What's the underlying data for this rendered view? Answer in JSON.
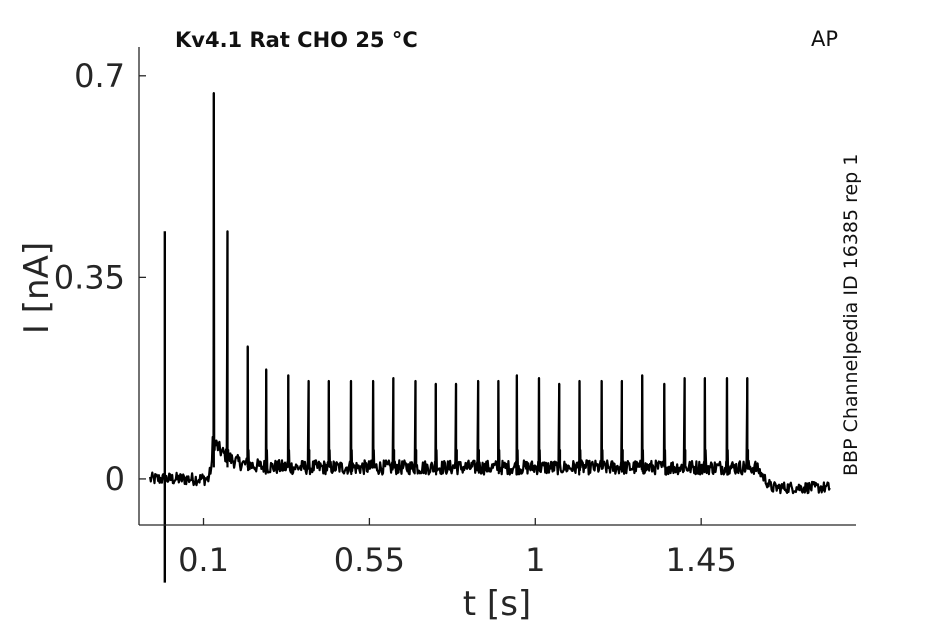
{
  "chart_data": {
    "type": "line",
    "title": "Kv4.1  Rat  CHO  25 °C",
    "corner_label": "AP",
    "side_label": "BBP Channelpedia ID 16385 rep 1",
    "xlabel": "t [s]",
    "ylabel": "I [nA]",
    "xlim": [
      -0.075,
      1.87
    ],
    "ylim": [
      -0.08,
      0.75
    ],
    "x_ticks": [
      0.1,
      0.55,
      1,
      1.45
    ],
    "x_tick_labels": [
      "0.1",
      "0.55",
      "1",
      "1.45"
    ],
    "y_ticks": [
      0,
      0.35,
      0.7
    ],
    "y_tick_labels": [
      "0",
      "0.35",
      "0.7"
    ],
    "grid": false,
    "legend": "none",
    "series": [
      {
        "color": "#000000",
        "baseline_start": 0,
        "baseline_end": -0.015,
        "stim_artifact": {
          "x": -0.005,
          "max": 0.43,
          "min": -0.18
        },
        "stim_on": 0.125,
        "stim_off": 1.6,
        "plateau": 0.02,
        "spikes": [
          {
            "t": 0.128,
            "peak": 0.67
          },
          {
            "t": 0.165,
            "peak": 0.43
          },
          {
            "t": 0.22,
            "peak": 0.23
          },
          {
            "t": 0.27,
            "peak": 0.19
          },
          {
            "t": 0.33,
            "peak": 0.18
          },
          {
            "t": 0.385,
            "peak": 0.17
          },
          {
            "t": 0.44,
            "peak": 0.17
          },
          {
            "t": 0.5,
            "peak": 0.17
          },
          {
            "t": 0.56,
            "peak": 0.17
          },
          {
            "t": 0.615,
            "peak": 0.175
          },
          {
            "t": 0.675,
            "peak": 0.17
          },
          {
            "t": 0.73,
            "peak": 0.165
          },
          {
            "t": 0.785,
            "peak": 0.165
          },
          {
            "t": 0.845,
            "peak": 0.17
          },
          {
            "t": 0.9,
            "peak": 0.17
          },
          {
            "t": 0.95,
            "peak": 0.18
          },
          {
            "t": 1.01,
            "peak": 0.175
          },
          {
            "t": 1.065,
            "peak": 0.165
          },
          {
            "t": 1.12,
            "peak": 0.17
          },
          {
            "t": 1.18,
            "peak": 0.17
          },
          {
            "t": 1.235,
            "peak": 0.17
          },
          {
            "t": 1.29,
            "peak": 0.18
          },
          {
            "t": 1.35,
            "peak": 0.165
          },
          {
            "t": 1.405,
            "peak": 0.175
          },
          {
            "t": 1.46,
            "peak": 0.175
          },
          {
            "t": 1.52,
            "peak": 0.175
          },
          {
            "t": 1.575,
            "peak": 0.175
          }
        ],
        "trace_end": 1.8
      }
    ]
  }
}
